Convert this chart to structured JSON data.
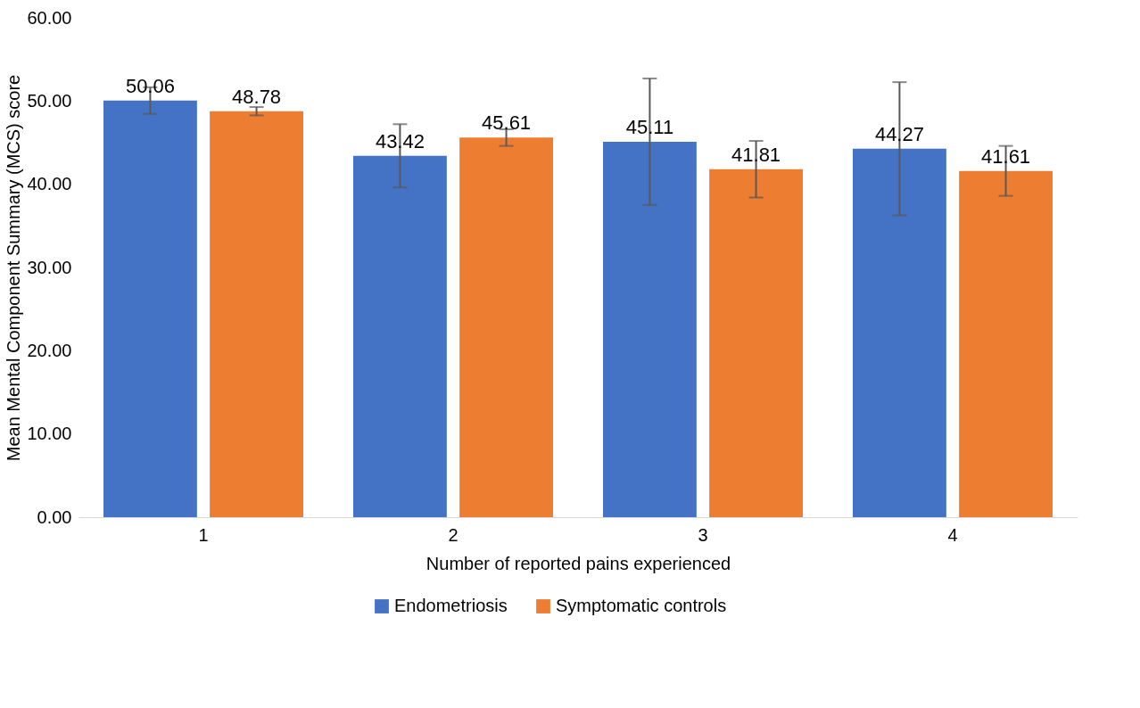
{
  "chart_data": {
    "type": "bar",
    "xlabel": "Number of reported pains experienced",
    "ylabel": "Mean Mental Component Summary (MCS) score",
    "categories": [
      "1",
      "2",
      "3",
      "4"
    ],
    "series": [
      {
        "name": "Endometriosis",
        "color": "#4472c4",
        "values": [
          50.06,
          43.42,
          45.11,
          44.27
        ],
        "errors": [
          1.6,
          3.8,
          7.6,
          8.0
        ]
      },
      {
        "name": "Symptomatic controls",
        "color": "#ed7d31",
        "values": [
          48.78,
          45.61,
          41.81,
          41.61
        ],
        "errors": [
          0.5,
          1.0,
          3.4,
          3.0
        ]
      }
    ],
    "ylim": [
      0,
      60
    ],
    "yticks": [
      {
        "value": 0,
        "label": "0.00"
      },
      {
        "value": 10,
        "label": "10.00"
      },
      {
        "value": 20,
        "label": "20.00"
      },
      {
        "value": 30,
        "label": "30.00"
      },
      {
        "value": 40,
        "label": "40.00"
      },
      {
        "value": 50,
        "label": "50.00"
      },
      {
        "value": 60,
        "label": "60.00"
      }
    ],
    "data_labels": true,
    "grid": false,
    "legend": "bottom"
  }
}
